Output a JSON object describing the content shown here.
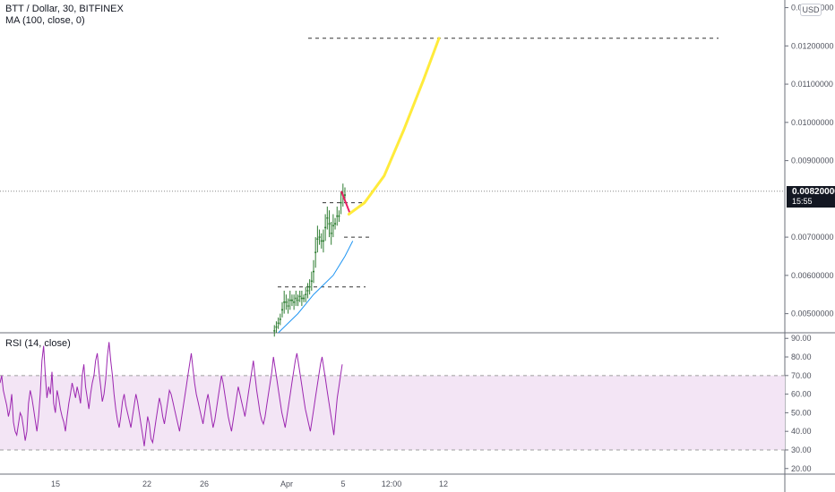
{
  "header": {
    "symbol_title": "BTT / Dollar, 30, BITFINEX",
    "ma_indicator": "MA (100, close, 0)",
    "currency_button": "USD"
  },
  "price_scale": {
    "ticks": [
      "0.01300000",
      "0.01200000",
      "0.01100000",
      "0.01000000",
      "0.00900000",
      "0.00700000",
      "0.00600000",
      "0.00500000"
    ],
    "last_price": "0.00820000",
    "countdown": "15:55"
  },
  "rsi_panel": {
    "title": "RSI (14, close)",
    "ticks": [
      "90.00",
      "80.00",
      "70.00",
      "60.00",
      "50.00",
      "40.00",
      "30.00",
      "20.00"
    ],
    "upper_band": 70,
    "lower_band": 30
  },
  "time_axis": {
    "labels": [
      "15",
      "22",
      "26",
      "Apr",
      "5",
      "12:00",
      "12"
    ]
  },
  "colors": {
    "bull": "#26a69a",
    "bear": "#ef5350",
    "candle_body": "#2e7d32",
    "ma_line": "#2196f3",
    "projection": "#ffeb3b",
    "pullback": "#e91e63",
    "rsi_line": "#9c27b0",
    "rsi_band_fill": "#f3e5f5"
  },
  "chart_data": [
    {
      "type": "line",
      "panel": "price",
      "title": "BTT / Dollar, 30, BITFINEX",
      "ylim": [
        0.0045,
        0.0132
      ],
      "series": [
        {
          "name": "MA (100, close, 0)",
          "points": [
            [
              0.71,
              0.0045
            ],
            [
              0.76,
              0.005
            ],
            [
              0.8,
              0.0055
            ],
            [
              0.85,
              0.006
            ],
            [
              0.88,
              0.0065
            ],
            [
              0.9,
              0.0069
            ]
          ]
        }
      ],
      "candles": [
        [
          0.7,
          0.0044,
          0.0047
        ],
        [
          0.705,
          0.0045,
          0.0048
        ],
        [
          0.71,
          0.0046,
          0.0049
        ],
        [
          0.715,
          0.0047,
          0.005
        ],
        [
          0.72,
          0.0049,
          0.0053
        ],
        [
          0.725,
          0.005,
          0.0056
        ],
        [
          0.73,
          0.0051,
          0.0055
        ],
        [
          0.735,
          0.005,
          0.0054
        ],
        [
          0.74,
          0.0051,
          0.0056
        ],
        [
          0.745,
          0.0052,
          0.0055
        ],
        [
          0.75,
          0.0051,
          0.0055
        ],
        [
          0.755,
          0.0052,
          0.0056
        ],
        [
          0.76,
          0.0052,
          0.0055
        ],
        [
          0.765,
          0.0053,
          0.0056
        ],
        [
          0.77,
          0.0052,
          0.0056
        ],
        [
          0.775,
          0.0053,
          0.0055
        ],
        [
          0.78,
          0.0053,
          0.0057
        ],
        [
          0.785,
          0.0054,
          0.0058
        ],
        [
          0.79,
          0.0055,
          0.0059
        ],
        [
          0.795,
          0.0056,
          0.0061
        ],
        [
          0.8,
          0.0058,
          0.0064
        ],
        [
          0.805,
          0.0062,
          0.007
        ],
        [
          0.81,
          0.0066,
          0.0073
        ],
        [
          0.815,
          0.0068,
          0.0072
        ],
        [
          0.82,
          0.0067,
          0.0071
        ],
        [
          0.825,
          0.0066,
          0.0072
        ],
        [
          0.83,
          0.0069,
          0.0076
        ],
        [
          0.835,
          0.0072,
          0.0078
        ],
        [
          0.84,
          0.007,
          0.0077
        ],
        [
          0.845,
          0.0068,
          0.0074
        ],
        [
          0.85,
          0.007,
          0.0076
        ],
        [
          0.855,
          0.0072,
          0.0075
        ],
        [
          0.86,
          0.0073,
          0.0078
        ],
        [
          0.865,
          0.0074,
          0.0077
        ],
        [
          0.87,
          0.0076,
          0.0082
        ],
        [
          0.875,
          0.0078,
          0.0084
        ],
        [
          0.88,
          0.0079,
          0.0083
        ]
      ],
      "levels": [
        0.0122,
        0.0079,
        0.007,
        0.0057
      ],
      "projection": [
        [
          0.89,
          0.0076
        ],
        [
          0.93,
          0.0079
        ],
        [
          0.98,
          0.0086
        ],
        [
          1.03,
          0.0098
        ],
        [
          1.08,
          0.0111
        ],
        [
          1.12,
          0.0122
        ]
      ]
    },
    {
      "type": "line",
      "panel": "rsi",
      "title": "RSI (14, close)",
      "ylim": [
        17,
        93
      ],
      "series": [
        {
          "name": "RSI (14, close)",
          "values": [
            66,
            70,
            62,
            58,
            54,
            48,
            52,
            60,
            45,
            40,
            38,
            44,
            50,
            48,
            42,
            35,
            40,
            55,
            62,
            58,
            52,
            46,
            40,
            48,
            60,
            78,
            86,
            70,
            58,
            64,
            60,
            72,
            55,
            50,
            62,
            58,
            52,
            48,
            45,
            40,
            48,
            55,
            60,
            66,
            62,
            58,
            64,
            60,
            55,
            70,
            76,
            64,
            58,
            52,
            60,
            66,
            70,
            78,
            82,
            72,
            64,
            56,
            60,
            68,
            80,
            88,
            78,
            70,
            60,
            52,
            46,
            42,
            48,
            56,
            60,
            54,
            50,
            46,
            42,
            48,
            54,
            60,
            56,
            50,
            44,
            38,
            32,
            40,
            48,
            44,
            36,
            34,
            40,
            46,
            52,
            58,
            54,
            48,
            44,
            50,
            56,
            62,
            60,
            56,
            52,
            48,
            44,
            40,
            46,
            52,
            58,
            64,
            70,
            76,
            82,
            74,
            66,
            60,
            56,
            52,
            48,
            44,
            50,
            56,
            60,
            54,
            48,
            42,
            46,
            52,
            58,
            64,
            70,
            66,
            60,
            54,
            48,
            44,
            40,
            46,
            52,
            58,
            64,
            60,
            56,
            52,
            48,
            54,
            60,
            66,
            72,
            78,
            70,
            62,
            56,
            50,
            46,
            44,
            48,
            54,
            60,
            66,
            72,
            80,
            74,
            68,
            62,
            56,
            50,
            46,
            42,
            48,
            54,
            60,
            66,
            72,
            78,
            82,
            76,
            70,
            64,
            58,
            52,
            48,
            44,
            40,
            46,
            52,
            58,
            64,
            70,
            76,
            80,
            74,
            68,
            62,
            56,
            50,
            44,
            38,
            48,
            58,
            64,
            70,
            76
          ]
        }
      ]
    }
  ]
}
